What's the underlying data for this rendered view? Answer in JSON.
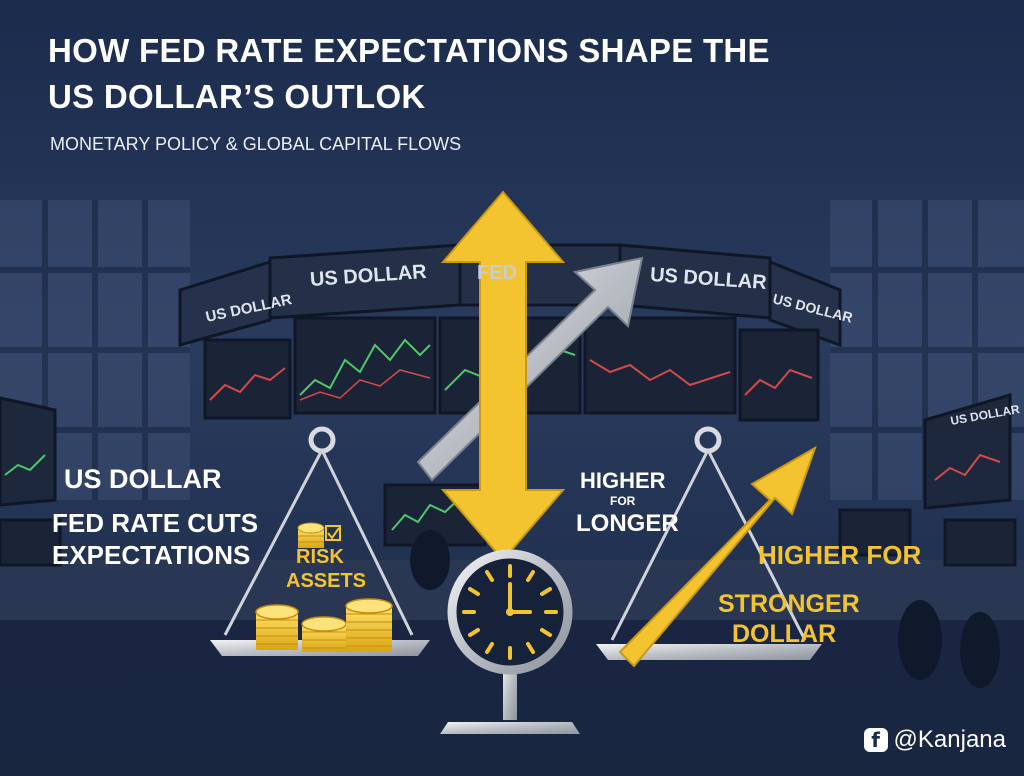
{
  "header": {
    "title_line1": "HOW FED RATE EXPECTATIONS SHAPE THE",
    "title_line2": "US DOLLAR’S OUTLOK",
    "subtitle": "MONETARY POLICY & GLOBAL CAPITAL FLOWS"
  },
  "screens": {
    "left": "US DOLLAR",
    "center_left": "US DOLLAR",
    "center_logo": "FED",
    "center_right": "US DOLLAR",
    "right": "US DOLLAR",
    "far_right": "US DOLLAR"
  },
  "left_panel": {
    "heading": "US DOLLAR",
    "line1": "FED RATE CUTS",
    "line2": "EXPECTATIONS",
    "pan_label_line1": "RISK",
    "pan_label_line2": "ASSETS"
  },
  "right_panel": {
    "higher": "HIGHER",
    "for": "FOR",
    "longer": "LONGER",
    "higher_for": "HIGHER FOR",
    "stronger": "STRONGER",
    "dollar": "DOLLAR"
  },
  "watermark": {
    "icon": "facebook-icon",
    "handle": "@Kanjana"
  },
  "colors": {
    "background": "#1d2c4c",
    "accent_yellow": "#f4c430",
    "text_white": "#ffffff",
    "silver": "#c9ccd2"
  }
}
